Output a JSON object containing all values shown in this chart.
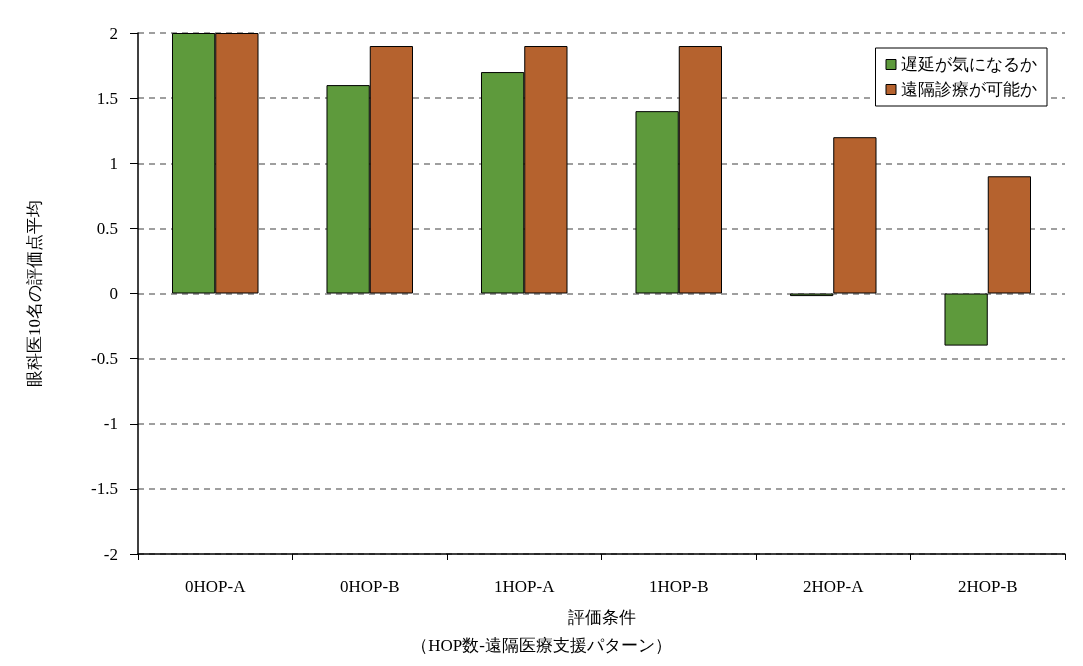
{
  "chart_data": {
    "type": "bar",
    "xlabel": "評価条件",
    "annotations": [
      "（HOP数-遠隔医療支援パターン）"
    ],
    "ylabel": "眼科医10名の評価点平均",
    "categories": [
      "0HOP-A",
      "0HOP-B",
      "1HOP-A",
      "1HOP-B",
      "2HOP-A",
      "2HOP-B"
    ],
    "series": [
      {
        "name": "遅延が気になるか",
        "color": "#5e9a3c",
        "values": [
          2,
          1.6,
          1.7,
          1.4,
          -0.02,
          -0.4
        ]
      },
      {
        "name": "遠隔診療が可能か",
        "color": "#b5622e",
        "values": [
          2,
          1.9,
          1.9,
          1.9,
          1.2,
          0.9
        ]
      }
    ],
    "ylim": [
      -2,
      2
    ],
    "yticks": [
      -2,
      -1.5,
      -1,
      -0.5,
      0,
      0.5,
      1,
      1.5,
      2
    ],
    "grid": "y",
    "legend": "top right"
  }
}
